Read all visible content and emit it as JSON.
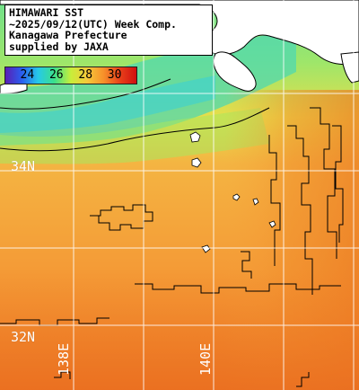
{
  "title_lines": [
    "HIMAWARI SST",
    "~2025/09/12(UTC) Week Comp.",
    "Kanagawa Prefecture",
    "supplied by JAXA"
  ],
  "legend": {
    "ticks": [
      "24",
      "26",
      "28",
      "30"
    ],
    "tick_values": [
      24,
      26,
      28,
      30
    ],
    "range": [
      22.5,
      31.5
    ],
    "colors": [
      "#5a1fb4",
      "#2a5ef0",
      "#26c9e8",
      "#3ce08a",
      "#c8ee3a",
      "#f6c93a",
      "#f7902a",
      "#e8401a",
      "#d01010"
    ]
  },
  "lat_labels": [
    "34N",
    "32N"
  ],
  "lon_labels": [
    "138E",
    "140E"
  ],
  "colors": {
    "land": "#ffffff",
    "coastline": "#000000",
    "grid": "#ffffff",
    "sea_warm": "#f2a23a",
    "sea_cool": "#7fe07a"
  }
}
